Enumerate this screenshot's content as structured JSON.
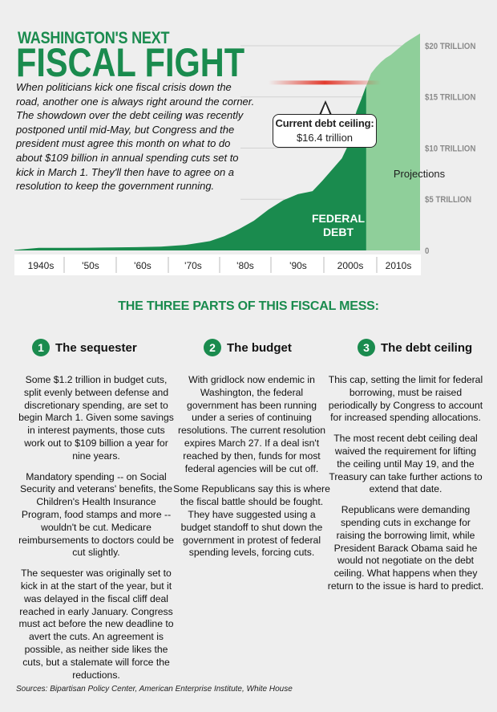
{
  "header": {
    "kicker": "WASHINGTON'S NEXT",
    "title": "FISCAL FIGHT",
    "intro": "When politicians kick one fiscal crisis down the road, another one is always right around the corner. The showdown over the debt ceiling was recently postponed until mid-May, but Congress and the president must agree this month on what to do about $109 billion in annual spending cuts set to kick in March 1. They'll then have to agree on a resolution to keep the government running."
  },
  "callout": {
    "label": "Current debt ceiling:",
    "value": "$16.4 trillion"
  },
  "chart_data": {
    "type": "area",
    "title": "",
    "xlabel": "",
    "ylabel": "",
    "x_tick_labels": [
      "1940s",
      "'50s",
      "'60s",
      "'70s",
      "'80s",
      "'90s",
      "2000s",
      "2010s"
    ],
    "y_tick_labels": [
      "0",
      "$5 TRILLION",
      "$10 TRILLION",
      "$15 TRILLION",
      "$20 TRILLION"
    ],
    "y_ticks": [
      0,
      5,
      10,
      15,
      20
    ],
    "ylim": [
      0,
      21
    ],
    "xlim": [
      1940,
      2023
    ],
    "grid": true,
    "debt_ceiling": 16.4,
    "series": [
      {
        "name": "FEDERAL DEBT",
        "label_lines": [
          "FEDERAL",
          "DEBT"
        ],
        "color": "#1a8b4e",
        "x": [
          1940,
          1945,
          1950,
          1955,
          1960,
          1965,
          1970,
          1975,
          1980,
          1983,
          1986,
          1989,
          1992,
          1995,
          1998,
          2001,
          2003,
          2005,
          2007,
          2008,
          2009,
          2010,
          2011,
          2012
        ],
        "values": [
          0.05,
          0.26,
          0.26,
          0.27,
          0.29,
          0.32,
          0.38,
          0.54,
          0.91,
          1.4,
          2.1,
          2.9,
          4.0,
          4.9,
          5.5,
          5.8,
          6.8,
          7.9,
          9.0,
          10.0,
          11.9,
          13.6,
          14.8,
          16.1
        ]
      },
      {
        "name": "Projections",
        "label_lines": [
          "Projections"
        ],
        "color": "#8fcf9a",
        "x": [
          2012,
          2013,
          2014,
          2015,
          2016,
          2017,
          2018,
          2019,
          2020,
          2021,
          2022,
          2023
        ],
        "values": [
          16.1,
          17.3,
          17.9,
          18.4,
          18.8,
          19.1,
          19.5,
          19.9,
          20.3,
          20.6,
          20.9,
          21.2
        ]
      }
    ]
  },
  "section_heading": "THE THREE PARTS OF THIS FISCAL MESS:",
  "columns": [
    {
      "number": "1",
      "title": "The sequester",
      "paragraphs": [
        "Some $1.2 trillion in budget cuts, split evenly between defense and discretionary spending, are set to begin March 1. Given some savings in interest payments, those cuts work out to $109 billion a year for nine years.",
        "Mandatory spending -- on Social Security and veterans' benefits, the Children's Health Insurance Program, food stamps and more -- wouldn't be cut. Medicare reimbursements to doctors could be cut slightly.",
        "The sequester was originally set to kick in at the start of the year, but it was delayed in the fiscal cliff deal reached in early January. Congress must act before the new deadline to avert the cuts. An agreement is possible, as neither side likes the cuts, but a stalemate will force the reductions."
      ]
    },
    {
      "number": "2",
      "title": "The budget",
      "paragraphs": [
        "With gridlock now endemic in Washington, the federal government has been running under a series of continuing resolutions. The current resolution expires March 27. If a deal isn't reached by then, funds for most federal agencies will be cut off.",
        "Some Republicans say this is where the fiscal battle should be fought. They have suggested using a budget standoff to shut down the government in protest of federal spending levels, forcing cuts."
      ]
    },
    {
      "number": "3",
      "title": "The debt ceiling",
      "paragraphs": [
        "This cap, setting the limit for federal borrowing, must be raised periodically by Congress to account for increased spending allocations.",
        "The most recent debt ceiling deal waived the requirement for lifting the ceiling until May 19, and the Treasury can take further actions to extend that date.",
        "Republicans were demanding spending cuts in exchange for raising the borrowing limit, while President Barack Obama said he would not negotiate on the debt ceiling. What happens when they return to the issue is hard to predict."
      ]
    }
  ],
  "sources": "Sources: Bipartisan Policy Center, American Enterprise Institute, White House",
  "colors": {
    "accent": "#1a8b4e",
    "projection": "#8fcf9a",
    "background": "#eeeeee",
    "gridline": "#d2d2d2",
    "ceiling_line": "#e23b2e"
  }
}
